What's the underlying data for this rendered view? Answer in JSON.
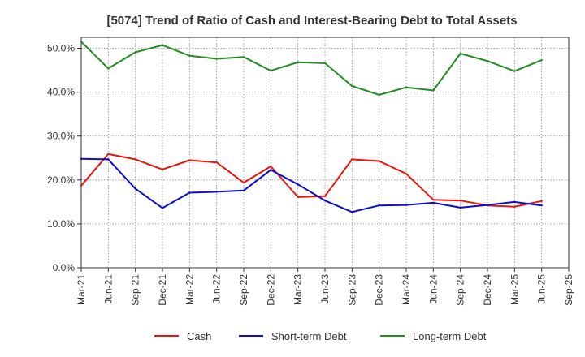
{
  "chart_data": {
    "type": "line",
    "title": "[5074]  Trend of Ratio of Cash and Interest-Bearing Debt to Total Assets",
    "xlabel": "",
    "ylabel": "",
    "ylim": [
      0,
      52.5
    ],
    "y_ticks": [
      0,
      10,
      20,
      30,
      40,
      50
    ],
    "y_tick_labels": [
      "0.0%",
      "10.0%",
      "20.0%",
      "30.0%",
      "40.0%",
      "50.0%"
    ],
    "x_ticks": [
      "Mar-21",
      "Jun-21",
      "Sep-21",
      "Dec-21",
      "Mar-22",
      "Jun-22",
      "Sep-22",
      "Dec-22",
      "Mar-23",
      "Jun-23",
      "Sep-23",
      "Dec-23",
      "Mar-24",
      "Jun-24",
      "Sep-24",
      "Dec-24",
      "Mar-25",
      "Jun-25",
      "Sep-25"
    ],
    "grid": true,
    "legend_position": "bottom",
    "x": [
      "Mar-21",
      "Jun-21",
      "Sep-21",
      "Dec-21",
      "Mar-22",
      "Jun-22",
      "Sep-22",
      "Dec-22",
      "Mar-23",
      "Jun-23",
      "Sep-23",
      "Dec-23",
      "Mar-24",
      "Jun-24",
      "Sep-24",
      "Dec-24",
      "Mar-25",
      "Jun-25"
    ],
    "series": [
      {
        "name": "Cash",
        "color": "#e8160c",
        "x_start_index": 0,
        "values": [
          18.7,
          25.9,
          24.7,
          22.4,
          24.5,
          24.0,
          19.4,
          23.1,
          16.1,
          16.3,
          24.7,
          24.3,
          21.4,
          15.5,
          15.3,
          14.2,
          13.9,
          15.2
        ]
      },
      {
        "name": "Short-term Debt",
        "color": "#0c0ccc",
        "x_start_index": 0,
        "values": [
          24.8,
          24.7,
          18.0,
          13.6,
          17.1,
          17.3,
          17.6,
          22.3,
          19.0,
          15.3,
          12.7,
          14.2,
          14.3,
          14.8,
          13.7,
          14.3,
          15.0,
          14.2
        ]
      },
      {
        "name": "Long-term Debt",
        "color": "#228b22",
        "x_start_index": 0,
        "values": [
          51.5,
          45.4,
          49.1,
          50.7,
          48.3,
          47.6,
          48.0,
          44.9,
          46.8,
          46.6,
          41.4,
          39.4,
          41.1,
          40.4,
          48.8,
          47.1,
          44.8,
          47.3
        ]
      }
    ]
  }
}
